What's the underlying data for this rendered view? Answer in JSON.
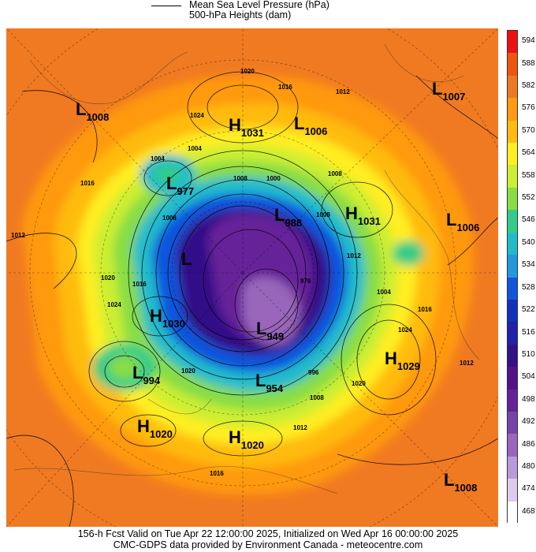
{
  "legend": {
    "line1": "Mean Sea Level Pressure (hPa)",
    "line2": "500-hPa Heights (dam)"
  },
  "pressure_centers": [
    {
      "type": "L",
      "value": "1008"
    },
    {
      "type": "H",
      "value": "1031"
    },
    {
      "type": "L",
      "value": "1006"
    },
    {
      "type": "L",
      "value": "1007"
    },
    {
      "type": "L",
      "value": "977"
    },
    {
      "type": "H",
      "value": "1031"
    },
    {
      "type": "L",
      "value": "1006"
    },
    {
      "type": "L",
      "value": "988"
    },
    {
      "type": "L",
      "value": ""
    },
    {
      "type": "H",
      "value": "1030"
    },
    {
      "type": "L",
      "value": "949"
    },
    {
      "type": "H",
      "value": "1029"
    },
    {
      "type": "L",
      "value": "994"
    },
    {
      "type": "L",
      "value": "954"
    },
    {
      "type": "H",
      "value": "1020"
    },
    {
      "type": "H",
      "value": "1020"
    },
    {
      "type": "L",
      "value": "1008"
    }
  ],
  "contour_labels": [
    "1020",
    "1016",
    "1012",
    "1024",
    "1004",
    "1008",
    "1000",
    "1016",
    "1012",
    "1008",
    "1004",
    "1012",
    "1016",
    "1020",
    "1024",
    "1008",
    "1016",
    "1020",
    "1024",
    "976",
    "996",
    "1004",
    "1008",
    "1012",
    "1020",
    "1016",
    "1012",
    "1008"
  ],
  "colorbar": {
    "labels": [
      "594",
      "588",
      "582",
      "576",
      "570",
      "564",
      "558",
      "552",
      "546",
      "540",
      "534",
      "528",
      "522",
      "516",
      "510",
      "504",
      "498",
      "492",
      "486",
      "480",
      "474",
      "468"
    ],
    "colors": [
      "#ee1111",
      "#ee5511",
      "#ee7722",
      "#ff9911",
      "#ffbb11",
      "#ffee22",
      "#ccee33",
      "#88dd44",
      "#33cc88",
      "#22bbcc",
      "#2299dd",
      "#1155dd",
      "#1133bb",
      "#2222aa",
      "#331188",
      "#551188",
      "#662299",
      "#7744aa",
      "#9966bb",
      "#bb99dd",
      "#ddccee",
      "#ffffff"
    ]
  },
  "footer": {
    "line1": "156-h Fcst Valid on Tue Apr 22 12:00:00 2025, Initialized on Wed Apr 16 00:00:00 2025",
    "line2": "CMC-GDPS data provided by Environment Canada - meteocentre.com"
  }
}
